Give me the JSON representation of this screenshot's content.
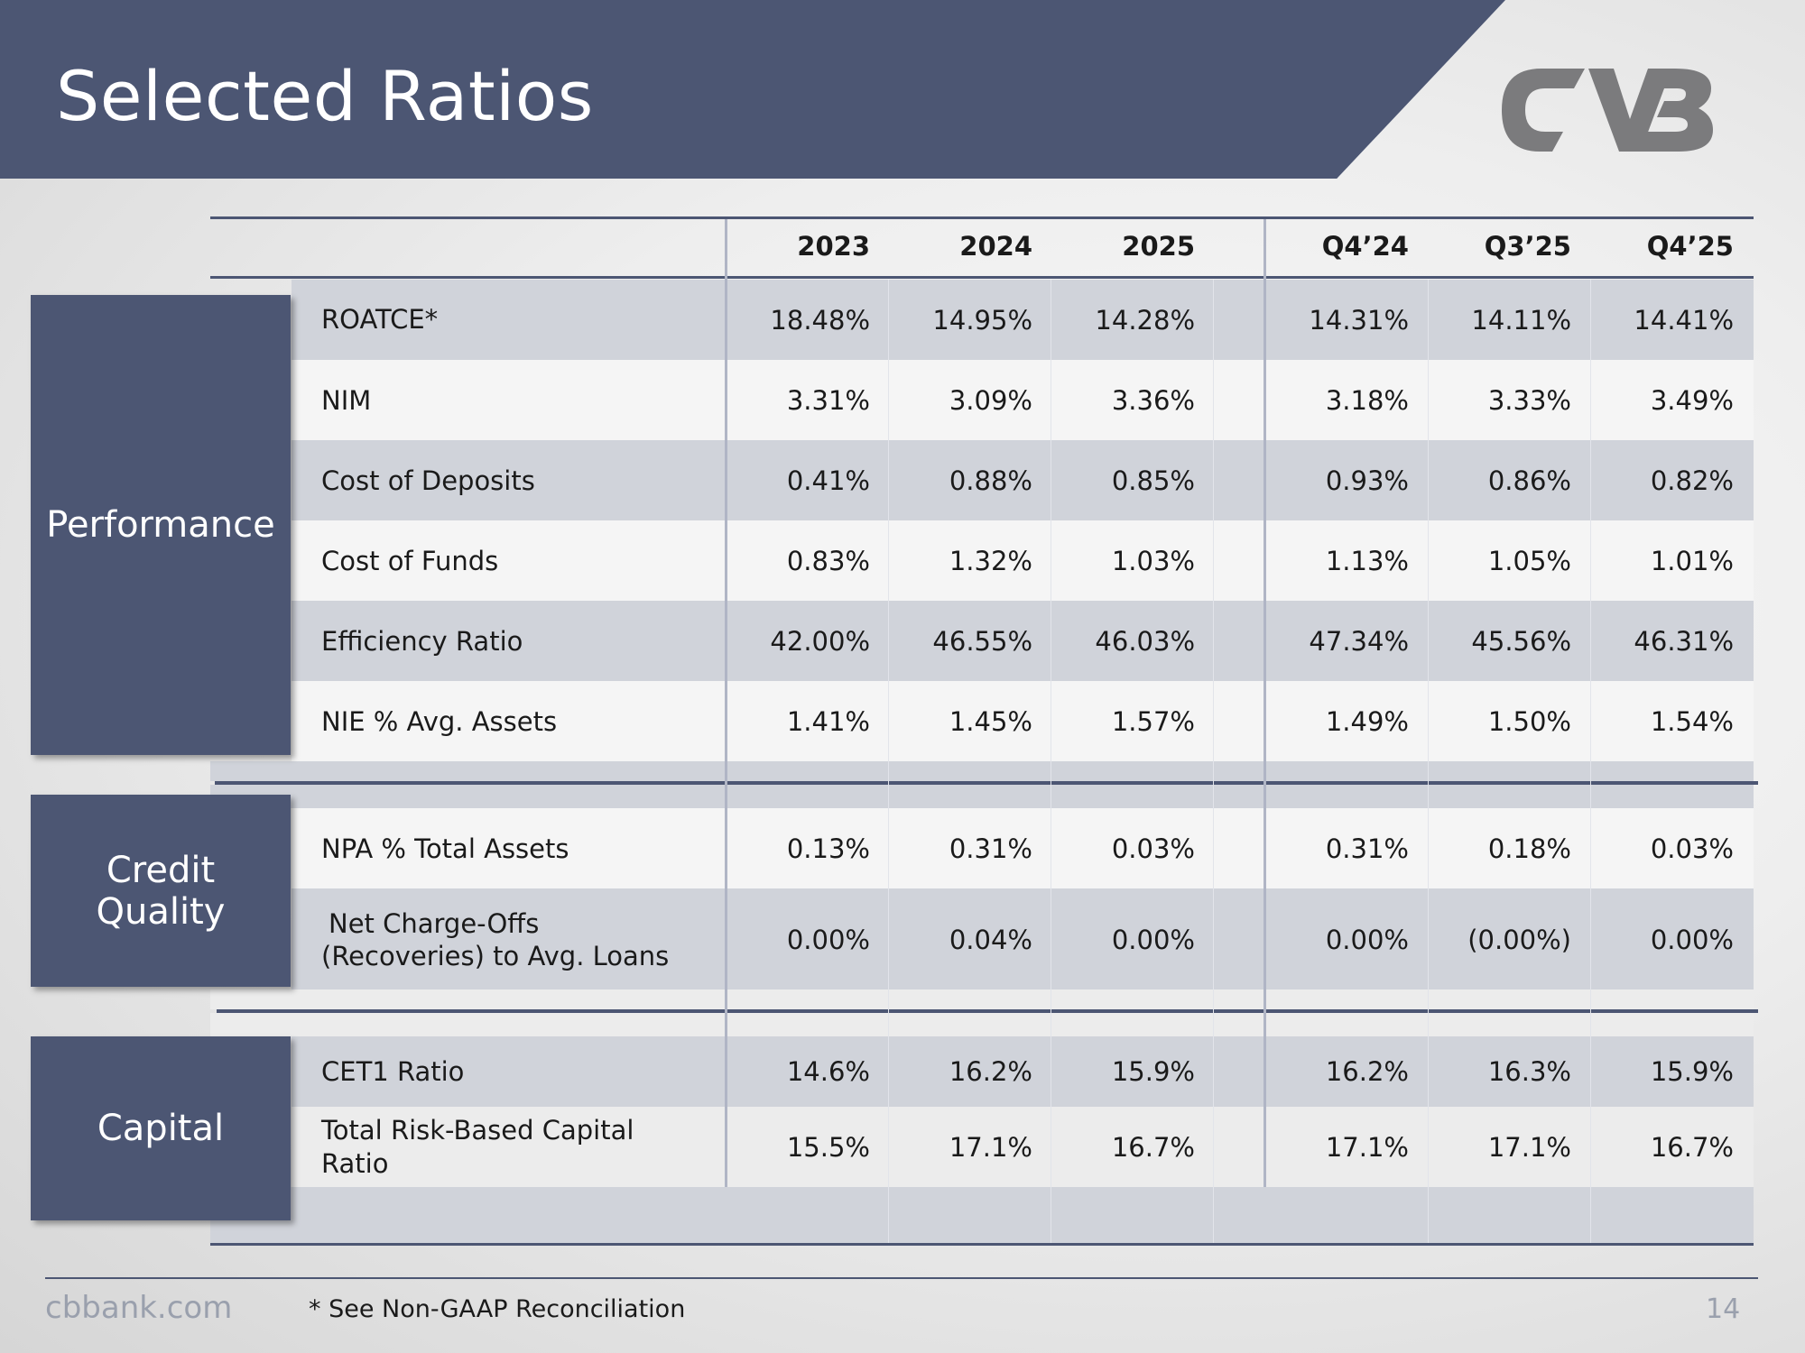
{
  "slide": {
    "title": "Selected Ratios",
    "footer_url": "cbbank.com",
    "footnote": "* See Non-GAAP Reconciliation",
    "page_number": "14"
  },
  "colors": {
    "header": "#4c5673",
    "accent_line": "#4c5673"
  },
  "logo": {
    "text": "CVB"
  },
  "columns": [
    "2023",
    "2024",
    "2025",
    "Q4’24",
    "Q3’25",
    "Q4’25"
  ],
  "sections": {
    "performance": {
      "label": "Performance",
      "rows": [
        {
          "label": "ROATCE*",
          "values": [
            "18.48%",
            "14.95%",
            "14.28%",
            "14.31%",
            "14.11%",
            "14.41%"
          ]
        },
        {
          "label": "NIM",
          "values": [
            "3.31%",
            "3.09%",
            "3.36%",
            "3.18%",
            "3.33%",
            "3.49%"
          ]
        },
        {
          "label": "Cost of Deposits",
          "values": [
            "0.41%",
            "0.88%",
            "0.85%",
            "0.93%",
            "0.86%",
            "0.82%"
          ]
        },
        {
          "label": "Cost of Funds",
          "values": [
            "0.83%",
            "1.32%",
            "1.03%",
            "1.13%",
            "1.05%",
            "1.01%"
          ]
        },
        {
          "label": "Efficiency Ratio",
          "values": [
            "42.00%",
            "46.55%",
            "46.03%",
            "47.34%",
            "45.56%",
            "46.31%"
          ]
        },
        {
          "label": "NIE % Avg. Assets",
          "values": [
            "1.41%",
            "1.45%",
            "1.57%",
            "1.49%",
            "1.50%",
            "1.54%"
          ]
        }
      ]
    },
    "credit": {
      "label_line1": "Credit",
      "label_line2": "Quality",
      "rows": [
        {
          "label": "NPA % Total Assets",
          "values": [
            "0.13%",
            "0.31%",
            "0.03%",
            "0.31%",
            "0.18%",
            "0.03%"
          ]
        },
        {
          "label_line1": "Net Charge-Offs",
          "label_line2": "(Recoveries) to Avg. Loans",
          "values": [
            "0.00%",
            "0.04%",
            "0.00%",
            "0.00%",
            "(0.00%)",
            "0.00%"
          ]
        }
      ]
    },
    "capital": {
      "label": "Capital",
      "rows": [
        {
          "label": "CET1 Ratio",
          "values": [
            "14.6%",
            "16.2%",
            "15.9%",
            "16.2%",
            "16.3%",
            "15.9%"
          ]
        },
        {
          "label_line1": "Total Risk-Based Capital",
          "label_line2": "Ratio",
          "values": [
            "15.5%",
            "17.1%",
            "16.7%",
            "17.1%",
            "17.1%",
            "16.7%"
          ]
        }
      ]
    }
  }
}
